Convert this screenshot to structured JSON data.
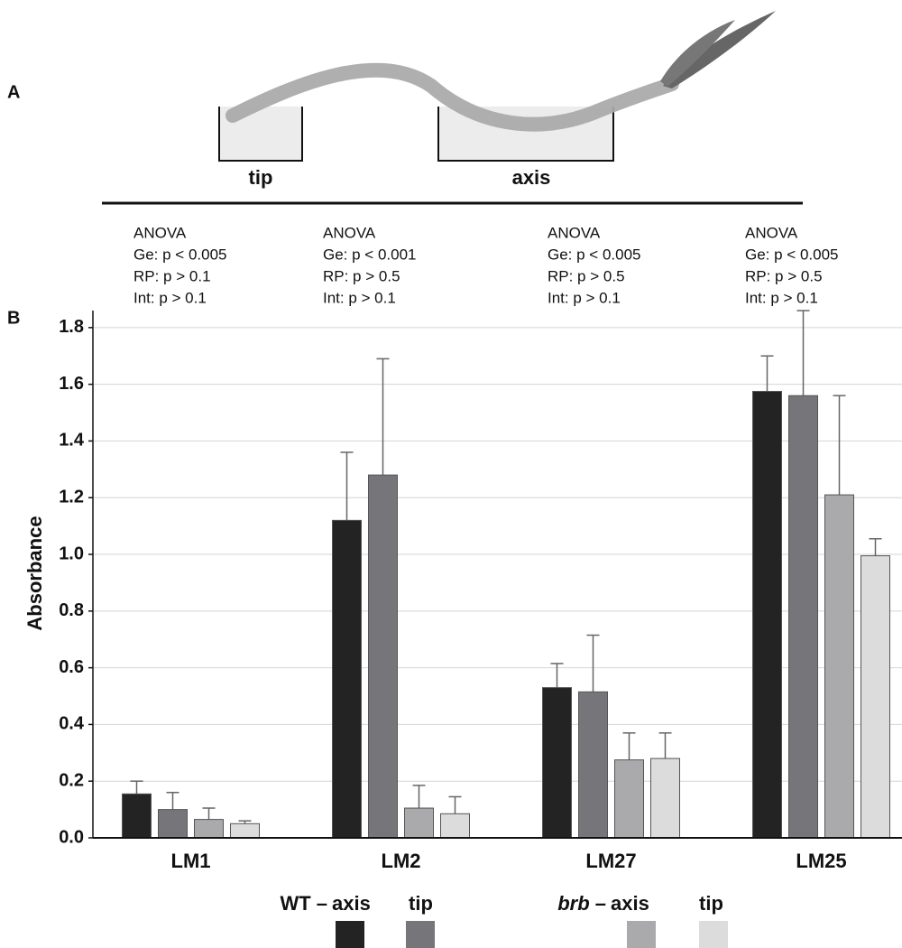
{
  "figure": {
    "panel_a_label": "A",
    "panel_b_label": "B",
    "diagram_labels": [
      "tip",
      "axis"
    ]
  },
  "chart_data": {
    "type": "bar",
    "y_label": "Absorbance",
    "categories": [
      "LM1",
      "LM2",
      "LM27",
      "LM25"
    ],
    "annotations": [
      [
        "ANOVA",
        "Ge: p < 0.005",
        "RP: p > 0.1",
        "Int: p > 0.1"
      ],
      [
        "ANOVA",
        "Ge: p < 0.001",
        "RP: p > 0.5",
        "Int: p > 0.1"
      ],
      [
        "ANOVA",
        "Ge: p < 0.005",
        "RP: p > 0.5",
        "Int: p > 0.1"
      ],
      [
        "ANOVA",
        "Ge: p < 0.005",
        "RP: p > 0.5",
        "Int: p > 0.1"
      ]
    ],
    "legend_groups": [
      "WT –",
      "brb –"
    ],
    "series": [
      {
        "name": "axis",
        "group": 0,
        "color": "#232323",
        "values": [
          0.155,
          1.12,
          0.53,
          1.575
        ],
        "errors": [
          0.045,
          0.24,
          0.085,
          0.125
        ]
      },
      {
        "name": "tip",
        "group": 0,
        "color": "#76767a",
        "values": [
          0.1,
          1.28,
          0.515,
          1.56
        ],
        "errors": [
          0.06,
          0.41,
          0.2,
          0.3
        ]
      },
      {
        "name": "axis",
        "group": 1,
        "color": "#aaaaad",
        "values": [
          0.065,
          0.105,
          0.275,
          1.21
        ],
        "errors": [
          0.04,
          0.08,
          0.095,
          0.35
        ]
      },
      {
        "name": "tip",
        "group": 1,
        "color": "#dcdcdc",
        "values": [
          0.05,
          0.085,
          0.28,
          0.995
        ],
        "errors": [
          0.01,
          0.06,
          0.09,
          0.06
        ]
      }
    ],
    "ylim": [
      0,
      1.86
    ],
    "yticks": [
      {
        "value": 0,
        "label": "0.0"
      },
      0.2,
      0.4,
      0.6,
      0.8,
      {
        "value": 1,
        "label": "1.0"
      },
      1.2,
      1.4,
      1.6,
      1.8
    ],
    "grid": true
  }
}
